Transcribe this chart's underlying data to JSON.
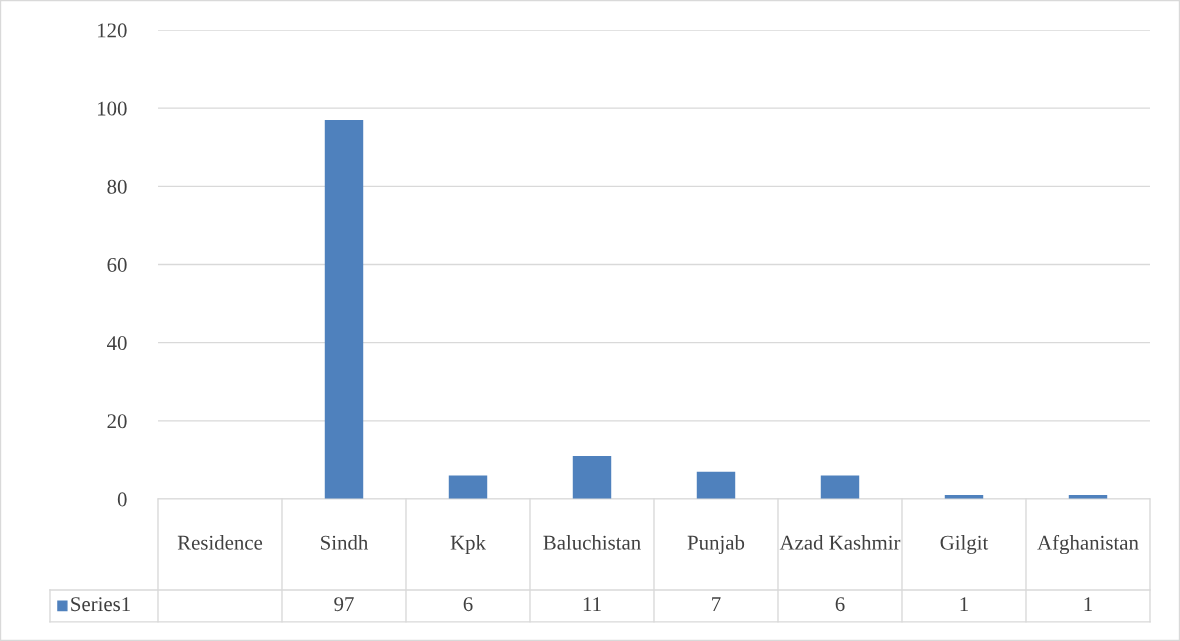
{
  "chart_data": {
    "type": "bar",
    "categories": [
      "Residence",
      "Sindh",
      "Kpk",
      "Baluchistan",
      "Punjab",
      "Azad Kashmir",
      "Gilgit",
      "Afghanistan"
    ],
    "series": [
      {
        "name": "Series1",
        "color": "#4f81bd",
        "values": [
          null,
          97,
          6,
          11,
          7,
          6,
          1,
          1
        ]
      }
    ],
    "ylim": [
      0,
      120
    ],
    "yticks": [
      0,
      20,
      40,
      60,
      80,
      100,
      120
    ],
    "grid": "y",
    "legend": "bottom",
    "data_labels": true
  }
}
